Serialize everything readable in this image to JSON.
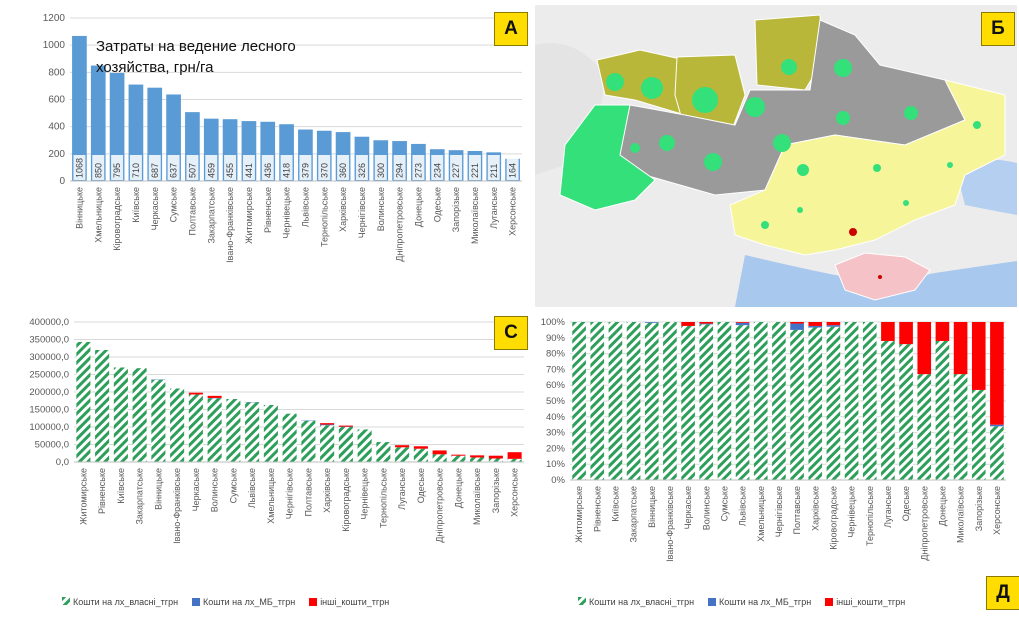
{
  "colors": {
    "bar_blue": "#5b9bd5",
    "own_green": "#2e9e5b",
    "mb_blue": "#4472c4",
    "other_red": "#ff0000",
    "panel_letter_bg": "#ffdd00"
  },
  "panels": {
    "a": {
      "letter": "А",
      "title": "Затраты  на ведение лесного хозяйства, грн/га"
    },
    "b": {
      "letter": "Б"
    },
    "c": {
      "letter": "С"
    },
    "d": {
      "letter": "Д"
    }
  },
  "legend": {
    "own": "Кошти на лх_власні_тгрн",
    "mb": "Кошти на лх_МБ_тгрн",
    "other": "інші_кошти_тгрн"
  },
  "chart_data": [
    {
      "id": "A",
      "type": "bar",
      "title": "Затраты  на ведение лесного хозяйства, грн/га",
      "categories": [
        "Вінницьке",
        "Хмельницьке",
        "Кіровоградське",
        "Київське",
        "Черкаське",
        "Сумське",
        "Полтавське",
        "Закарпатське",
        "Івано-Франківське",
        "Житомирське",
        "Рівненське",
        "Чернівецьке",
        "Львівське",
        "Тернопільське",
        "Харківське",
        "Чернігівське",
        "Волинське",
        "Дніпропетровське",
        "Донецьке",
        "Одеське",
        "Запорізьке",
        "Миколаївське",
        "Луганське",
        "Херсонське"
      ],
      "values": [
        1068,
        850,
        795,
        710,
        687,
        637,
        507,
        459,
        455,
        441,
        436,
        418,
        379,
        370,
        360,
        326,
        300,
        294,
        273,
        234,
        227,
        221,
        211,
        164
      ],
      "ylim": [
        0,
        1200
      ],
      "yticks": [
        0,
        200,
        400,
        600,
        800,
        1000,
        1200
      ],
      "data_labels": true,
      "grid": true
    },
    {
      "id": "C",
      "type": "bar",
      "stacked": true,
      "categories": [
        "Житомирське",
        "Рівненське",
        "Київське",
        "Закарпатське",
        "Вінницьке",
        "Івано-Франківське",
        "Черкаське",
        "Волинське",
        "Сумське",
        "Львівське",
        "Хмельницьке",
        "Чернігівське",
        "Полтавське",
        "Харківське",
        "Кіровоградське",
        "Чернівецьке",
        "Тернопільське",
        "Луганське",
        "Одеське",
        "Дніпропетровське",
        "Донецьке",
        "Миколаївське",
        "Запорізьке",
        "Херсонське"
      ],
      "series": [
        {
          "name": "Кошти на лх_власні_тгрн",
          "values": [
            343000,
            320000,
            270000,
            268000,
            235000,
            210000,
            193000,
            182000,
            180000,
            170000,
            163000,
            138000,
            118000,
            105000,
            100000,
            93000,
            57000,
            42000,
            38000,
            22000,
            18000,
            13000,
            10000,
            9000
          ]
        },
        {
          "name": "Кошти на лх_МБ_тгрн",
          "values": [
            0,
            0,
            0,
            0,
            1000,
            0,
            0,
            1000,
            0,
            1000,
            0,
            0,
            1000,
            2000,
            1000,
            0,
            0,
            0,
            0,
            0,
            0,
            0,
            0,
            0
          ]
        },
        {
          "name": "інші_кошти_тгрн",
          "values": [
            0,
            0,
            0,
            0,
            0,
            0,
            5000,
            6000,
            0,
            0,
            0,
            0,
            0,
            4000,
            3000,
            0,
            0,
            6000,
            7000,
            11000,
            3000,
            6000,
            8000,
            19000
          ]
        }
      ],
      "ylim": [
        0,
        400000
      ],
      "yticks": [
        "0,0",
        "50000,0",
        "100000,0",
        "150000,0",
        "200000,0",
        "250000,0",
        "300000,0",
        "350000,0",
        "400000,0"
      ],
      "legend_position": "bottom",
      "grid": true
    },
    {
      "id": "Д",
      "type": "bar",
      "stacked": true,
      "percent": true,
      "categories": [
        "Житомирське",
        "Рівненське",
        "Київське",
        "Закарпатське",
        "Вінницьке",
        "Івано-Франківське",
        "Черкаське",
        "Волинське",
        "Сумське",
        "Львівське",
        "Хмельницьке",
        "Чернігівське",
        "Полтавське",
        "Харківське",
        "Кіровоградське",
        "Чернівецьке",
        "Тернопільське",
        "Луганське",
        "Одеське",
        "Дніпропетровське",
        "Донецьке",
        "Миколаївське",
        "Запорізьке",
        "Херсонське"
      ],
      "series": [
        {
          "name": "Кошти на лх_власні_тгрн",
          "values": [
            100,
            100,
            100,
            100,
            99.5,
            100,
            97.5,
            98.5,
            100,
            98,
            100,
            100,
            95,
            96.5,
            97,
            100,
            100,
            88,
            86,
            67,
            88,
            67,
            57,
            34
          ]
        },
        {
          "name": "Кошти на лх_МБ_тгрн",
          "values": [
            0,
            0,
            0,
            0,
            0.5,
            0,
            0,
            0.5,
            0,
            1.5,
            0,
            0,
            4,
            1,
            1,
            0,
            0,
            0,
            0,
            0,
            0,
            0,
            0,
            1
          ]
        },
        {
          "name": "інші_кошти_тгрн",
          "values": [
            0,
            0,
            0,
            0,
            0,
            0,
            2.5,
            1,
            0,
            0.5,
            0,
            0,
            1,
            2.5,
            2,
            0,
            0,
            12,
            14,
            33,
            12,
            33,
            43,
            65
          ]
        }
      ],
      "ylim": [
        0,
        100
      ],
      "yticks": [
        "0%",
        "10%",
        "20%",
        "30%",
        "40%",
        "50%",
        "60%",
        "70%",
        "80%",
        "90%",
        "100%"
      ],
      "legend_position": "bottom",
      "grid": true
    }
  ]
}
